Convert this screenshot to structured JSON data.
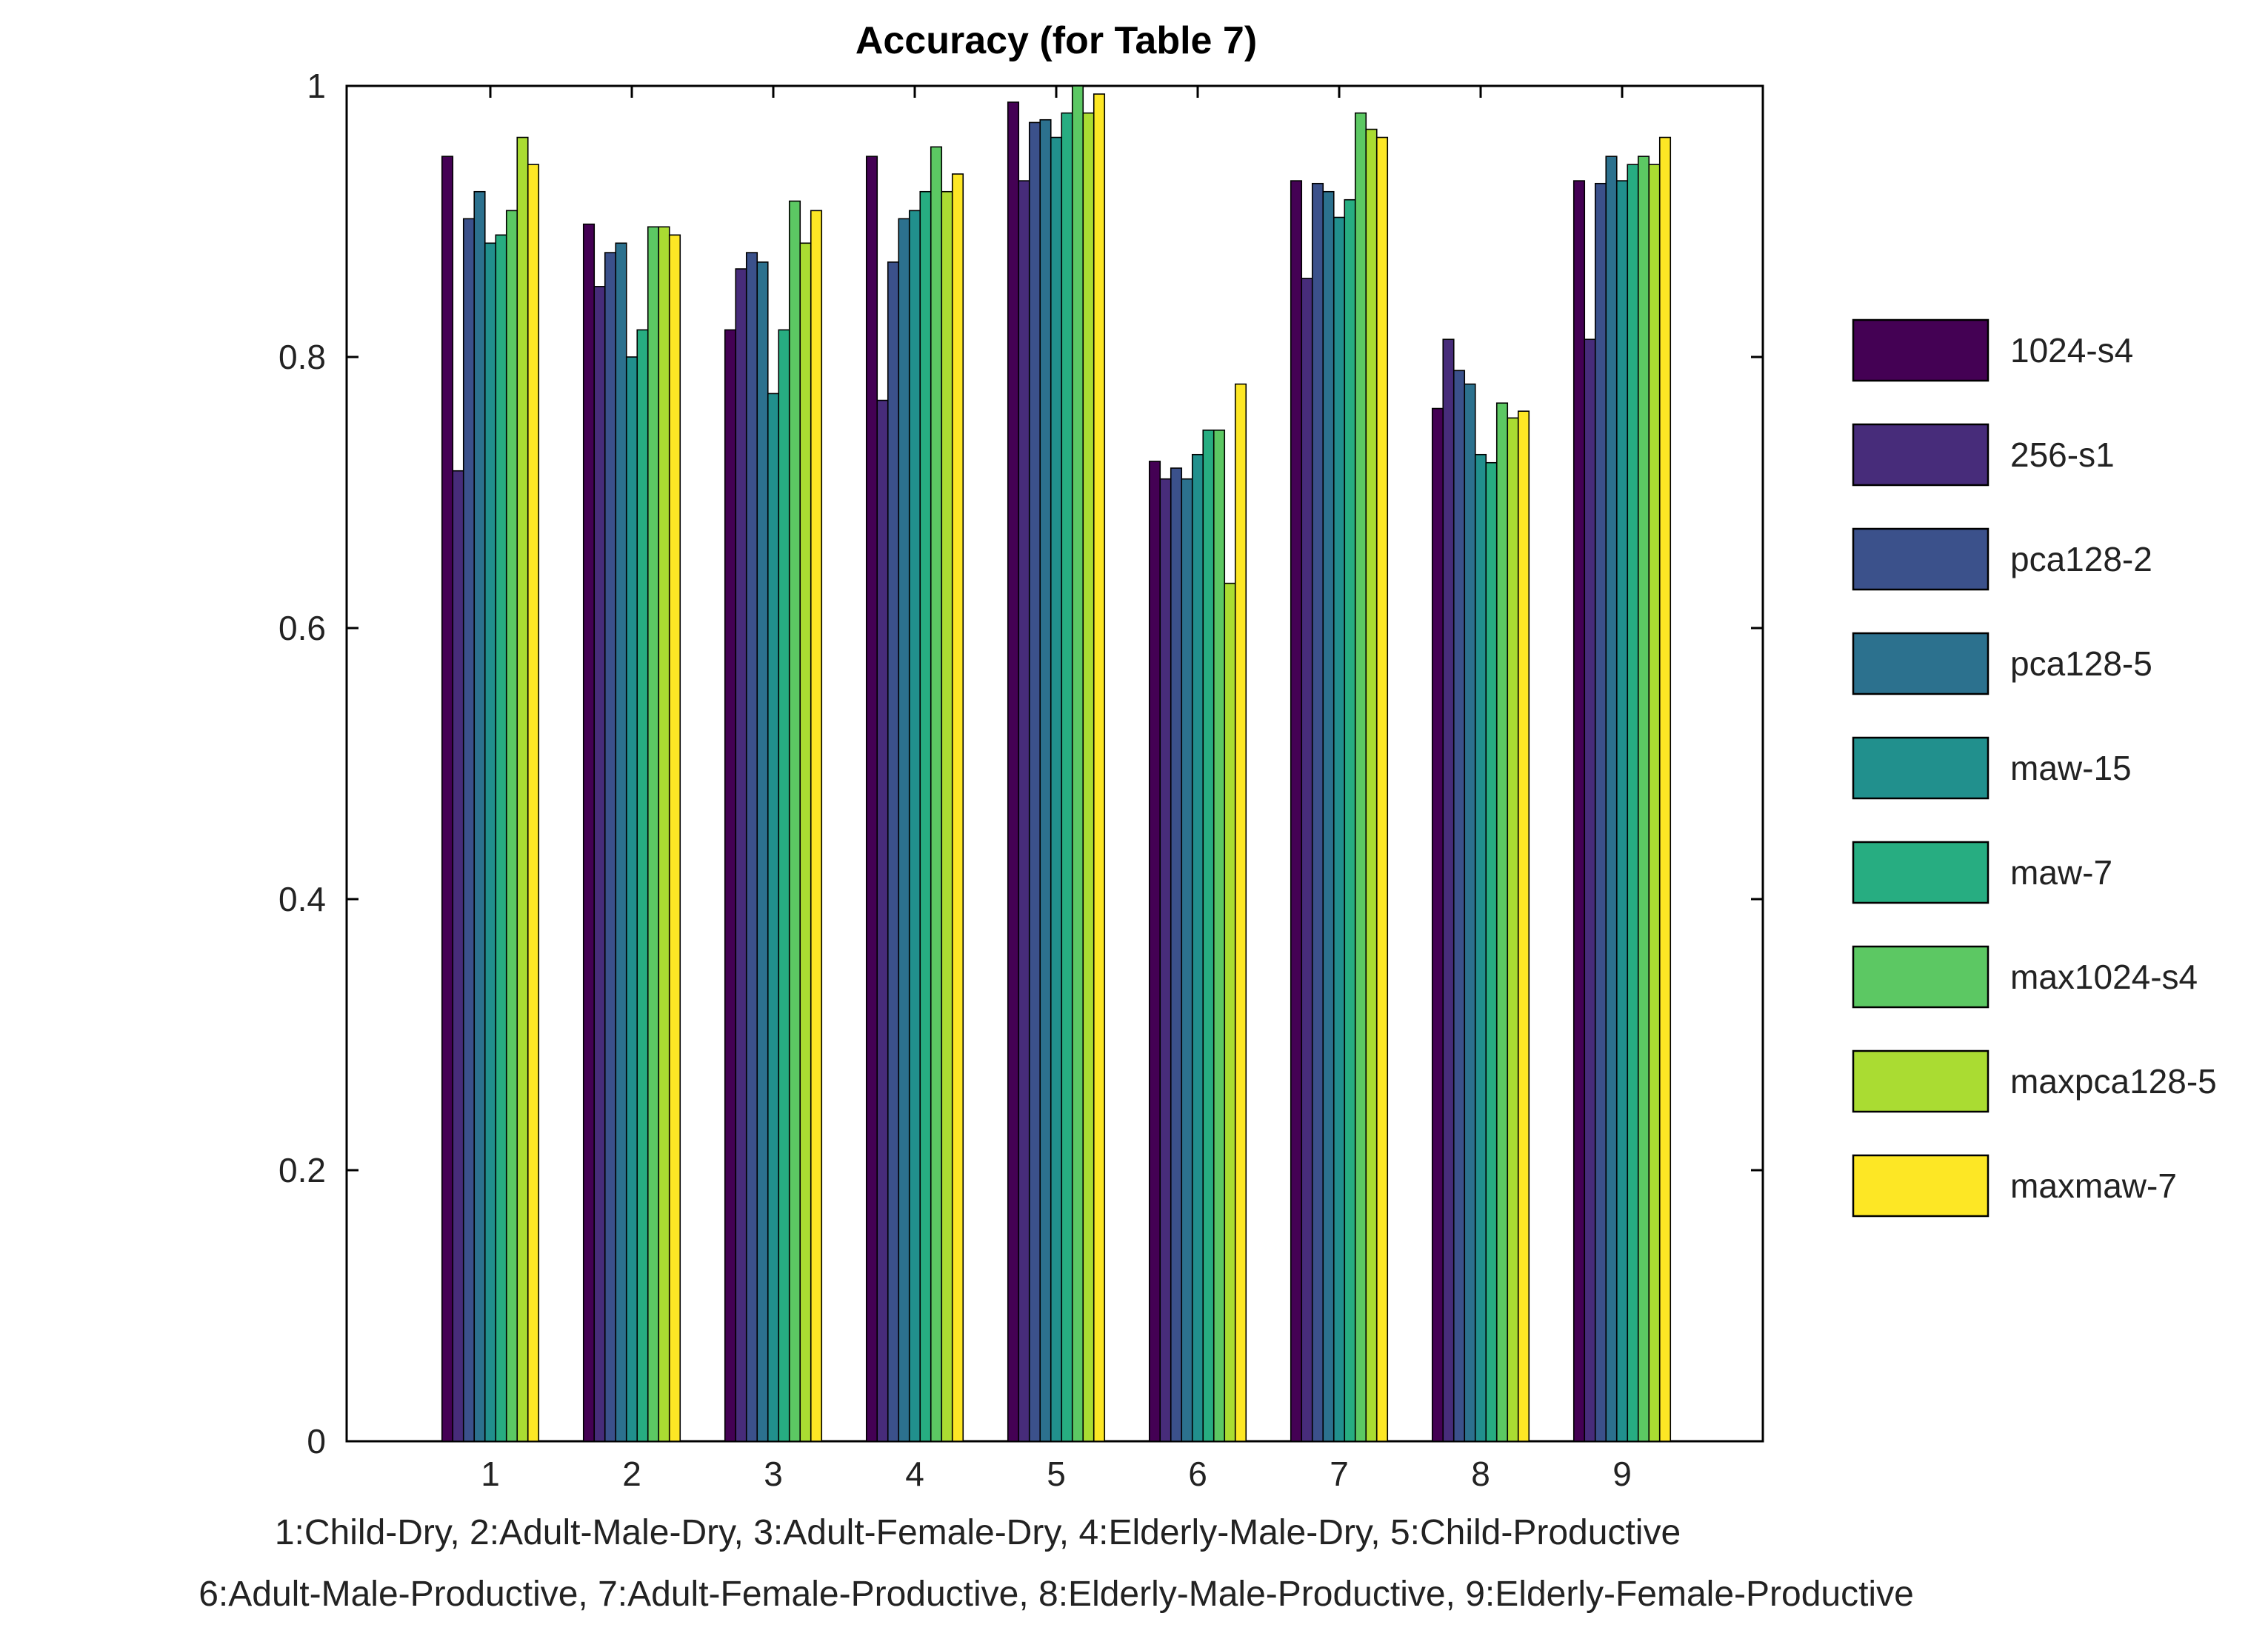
{
  "chart_data": {
    "type": "bar",
    "title": "Accuracy (for Table 7)",
    "xlabel": "",
    "ylabel": "",
    "ylim": [
      0,
      1
    ],
    "yticks": [
      "0",
      "0.2",
      "0.4",
      "0.6",
      "0.8",
      "1"
    ],
    "categories": [
      "1",
      "2",
      "3",
      "4",
      "5",
      "6",
      "7",
      "8",
      "9"
    ],
    "legend_position": "right",
    "series": [
      {
        "name": "1024-s4",
        "color": "#440154",
        "values": [
          0.948,
          0.898,
          0.82,
          0.948,
          0.988,
          0.723,
          0.93,
          0.762,
          0.93
        ]
      },
      {
        "name": "256-s1",
        "color": "#472c7a",
        "values": [
          0.716,
          0.852,
          0.865,
          0.768,
          0.93,
          0.71,
          0.858,
          0.813,
          0.813
        ]
      },
      {
        "name": "pca128-2",
        "color": "#3b518b",
        "values": [
          0.902,
          0.877,
          0.877,
          0.87,
          0.973,
          0.718,
          0.928,
          0.79,
          0.928
        ]
      },
      {
        "name": "pca128-5",
        "color": "#2c718e",
        "values": [
          0.922,
          0.884,
          0.87,
          0.902,
          0.975,
          0.71,
          0.922,
          0.78,
          0.948
        ]
      },
      {
        "name": "maw-15",
        "color": "#21908d",
        "values": [
          0.884,
          0.8,
          0.773,
          0.908,
          0.962,
          0.728,
          0.903,
          0.728,
          0.93
        ]
      },
      {
        "name": "maw-7",
        "color": "#27ad81",
        "values": [
          0.89,
          0.82,
          0.82,
          0.922,
          0.98,
          0.746,
          0.916,
          0.722,
          0.942
        ]
      },
      {
        "name": "max1024-s4",
        "color": "#5cc863",
        "values": [
          0.908,
          0.896,
          0.915,
          0.955,
          1.0,
          0.746,
          0.98,
          0.766,
          0.948
        ]
      },
      {
        "name": "maxpca128-5",
        "color": "#aadc32",
        "values": [
          0.962,
          0.896,
          0.884,
          0.922,
          0.98,
          0.633,
          0.968,
          0.755,
          0.942
        ]
      },
      {
        "name": "maxmaw-7",
        "color": "#fde725",
        "values": [
          0.942,
          0.89,
          0.908,
          0.935,
          0.994,
          0.78,
          0.962,
          0.76,
          0.962
        ]
      }
    ],
    "caption_lines": [
      "1:Child-Dry, 2:Adult-Male-Dry, 3:Adult-Female-Dry, 4:Elderly-Male-Dry, 5:Child-Productive",
      "6:Adult-Male-Productive, 7:Adult-Female-Productive, 8:Elderly-Male-Productive, 9:Elderly-Female-Productive"
    ]
  }
}
